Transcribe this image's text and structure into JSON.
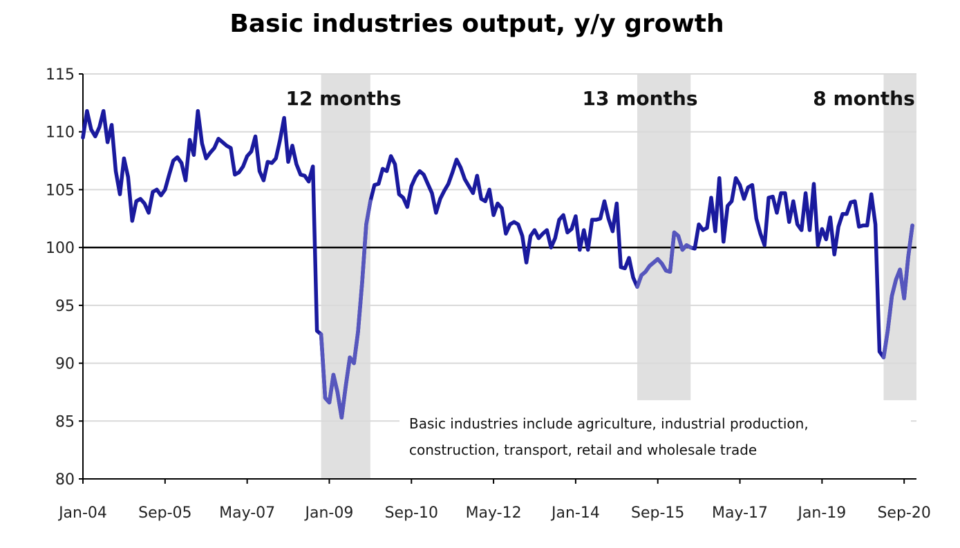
{
  "chart_data": {
    "type": "line",
    "title": "Basic industries output, y/y growth",
    "xlabel": "",
    "ylabel": "",
    "ylim": [
      80,
      115
    ],
    "yticks": [
      80,
      85,
      90,
      95,
      100,
      105,
      110,
      115
    ],
    "x_start": "Jan-04",
    "x_end": "Dec-20",
    "xticks": [
      "Jan-04",
      "Sep-05",
      "May-07",
      "Jan-09",
      "Sep-10",
      "May-12",
      "Jan-14",
      "Sep-15",
      "May-17",
      "Jan-19",
      "Sep-20"
    ],
    "grid": true,
    "reference_line": 100,
    "line_color": "#1a1a9e",
    "shade_color": "#e0e0e0",
    "recessions": [
      {
        "label": "12 months",
        "start": "Nov-08",
        "end": "Nov-09"
      },
      {
        "label": "13 months",
        "start": "Apr-15",
        "end": "May-16"
      },
      {
        "label": "8 months",
        "start": "Apr-20",
        "end": "Dec-20"
      }
    ],
    "note": [
      "Basic industries include agriculture, industrial production,",
      "construction, transport, retail and wholesale trade"
    ],
    "series": [
      {
        "values": [
          109.5,
          111.8,
          110.2,
          109.6,
          110.4,
          111.8,
          109.1,
          110.6,
          106.6,
          104.6,
          107.7,
          106.1,
          102.3,
          104.0,
          104.2,
          103.8,
          103.0,
          104.8,
          105.0,
          104.5,
          105.0,
          106.3,
          107.5,
          107.8,
          107.3,
          105.8,
          109.3,
          108.0,
          111.8,
          109.0,
          107.7,
          108.2,
          108.6,
          109.4,
          109.1,
          108.8,
          108.6,
          106.3,
          106.5,
          107.0,
          107.9,
          108.3,
          109.6,
          106.6,
          105.8,
          107.4,
          107.3,
          107.7,
          109.3,
          111.2,
          107.4,
          108.8,
          107.2,
          106.3,
          106.2,
          105.7,
          107.0,
          92.8,
          92.5,
          87.0,
          86.6,
          89.0,
          87.5,
          85.3,
          88.0,
          90.5,
          90.0,
          92.7,
          97.0,
          102.0,
          104.0,
          105.4,
          105.5,
          106.8,
          106.6,
          107.9,
          107.2,
          104.6,
          104.3,
          103.5,
          105.3,
          106.1,
          106.6,
          106.3,
          105.5,
          104.7,
          103.0,
          104.2,
          104.9,
          105.5,
          106.5,
          107.6,
          106.9,
          105.9,
          105.3,
          104.7,
          106.2,
          104.2,
          104.0,
          105.0,
          102.8,
          103.8,
          103.4,
          101.2,
          102.0,
          102.2,
          102.0,
          101.0,
          98.7,
          101.0,
          101.5,
          100.8,
          101.2,
          101.5,
          100.0,
          100.8,
          102.4,
          102.8,
          101.3,
          101.6,
          102.7,
          99.8,
          101.5,
          99.8,
          102.4,
          102.4,
          102.5,
          104.0,
          102.5,
          101.4,
          103.8,
          98.3,
          98.2,
          99.1,
          97.4,
          96.6,
          97.6,
          97.9,
          98.4,
          98.7,
          99.0,
          98.6,
          98.0,
          97.9,
          101.3,
          101.0,
          99.8,
          100.2,
          100.0,
          99.9,
          102.0,
          101.5,
          101.7,
          104.3,
          101.4,
          106.0,
          100.5,
          103.6,
          104.0,
          106.0,
          105.4,
          104.2,
          105.2,
          105.4,
          102.5,
          101.2,
          100.2,
          104.3,
          104.4,
          103.0,
          104.7,
          104.7,
          102.2,
          104.0,
          102.0,
          101.5,
          104.7,
          101.5,
          105.5,
          100.2,
          101.6,
          100.7,
          102.6,
          99.4,
          101.8,
          102.9,
          102.9,
          103.9,
          104.0,
          101.8,
          101.9,
          101.9,
          104.6,
          102.0,
          91.0,
          90.5,
          92.8,
          95.8,
          97.2,
          98.1,
          95.6,
          99.2,
          101.9
        ]
      }
    ]
  }
}
